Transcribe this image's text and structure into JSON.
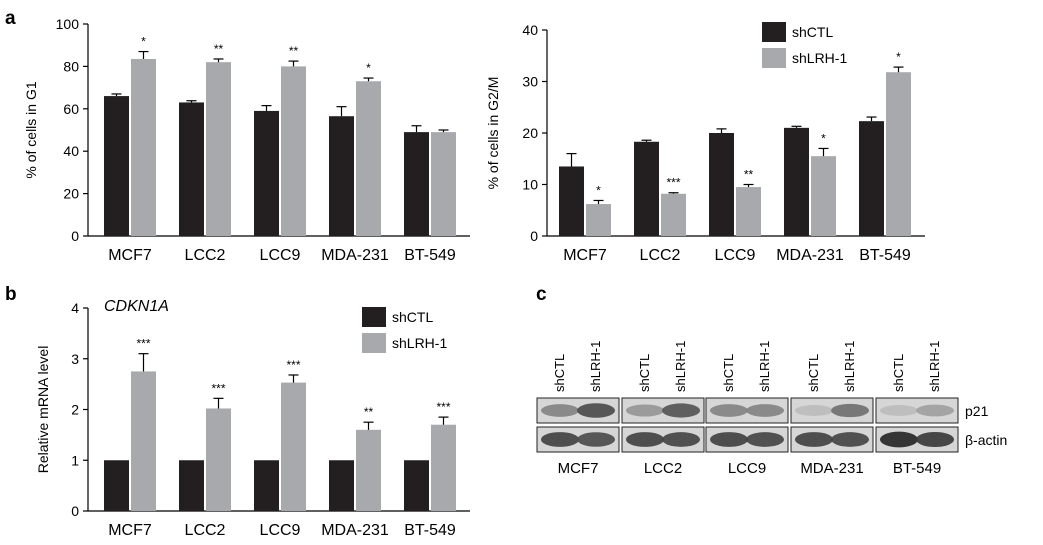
{
  "colors": {
    "shCTL": "#231f20",
    "shLRH-1": "#a7a9ac"
  },
  "chart_data": [
    {
      "panel": "a",
      "type": "bar",
      "ylabel": "% of cells in G1",
      "ylim": [
        0,
        100
      ],
      "yticks": [
        0,
        20,
        40,
        60,
        80,
        100
      ],
      "categories": [
        "MCF7",
        "LCC2",
        "LCC9",
        "MDA-231",
        "BT-549"
      ],
      "series": [
        {
          "name": "shCTL",
          "values": [
            66,
            63,
            59,
            56.5,
            49
          ],
          "errors": [
            1,
            0.8,
            2.5,
            4.5,
            3
          ]
        },
        {
          "name": "shLRH-1",
          "values": [
            83.5,
            82,
            80,
            73,
            49
          ],
          "errors": [
            3.5,
            1.5,
            2.5,
            1.5,
            1
          ]
        }
      ],
      "significance": [
        "*",
        "**",
        "**",
        "*",
        ""
      ],
      "legend": false
    },
    {
      "panel": "",
      "type": "bar",
      "ylabel": "% of cells in G2/M",
      "ylim": [
        0,
        40
      ],
      "yticks": [
        0,
        10,
        20,
        30,
        40
      ],
      "categories": [
        "MCF7",
        "LCC2",
        "LCC9",
        "MDA-231",
        "BT-549"
      ],
      "series": [
        {
          "name": "shCTL",
          "values": [
            13.5,
            18.3,
            20,
            21,
            22.3
          ],
          "errors": [
            2.5,
            0.3,
            0.8,
            0.3,
            0.8
          ]
        },
        {
          "name": "shLRH-1",
          "values": [
            6.2,
            8.2,
            9.5,
            15.5,
            31.8
          ],
          "errors": [
            0.7,
            0.2,
            0.5,
            1.5,
            1
          ]
        }
      ],
      "significance": [
        "*",
        "***",
        "**",
        "*",
        "*"
      ],
      "legend": true,
      "legend_placement": "top-right"
    },
    {
      "panel": "b",
      "type": "bar",
      "title": "CDKN1A",
      "ylabel": "Relative mRNA level",
      "ylim": [
        0,
        4
      ],
      "yticks": [
        0,
        1,
        2,
        3,
        4
      ],
      "categories": [
        "MCF7",
        "LCC2",
        "LCC9",
        "MDA-231",
        "BT-549"
      ],
      "series": [
        {
          "name": "shCTL",
          "values": [
            1,
            1,
            1,
            1,
            1
          ],
          "errors": [
            0,
            0,
            0,
            0,
            0
          ]
        },
        {
          "name": "shLRH-1",
          "values": [
            2.75,
            2.02,
            2.53,
            1.6,
            1.7
          ],
          "errors": [
            0.35,
            0.2,
            0.15,
            0.15,
            0.15
          ]
        }
      ],
      "significance": [
        "***",
        "***",
        "***",
        "**",
        "***"
      ],
      "legend": true,
      "legend_placement": "top-right"
    }
  ],
  "blot": {
    "panel": "c",
    "lane_labels": [
      "shCTL",
      "shLRH-1"
    ],
    "cell_lines": [
      "MCF7",
      "LCC2",
      "LCC9",
      "MDA-231",
      "BT-549"
    ],
    "rows": [
      "p21",
      "β-actin"
    ]
  }
}
